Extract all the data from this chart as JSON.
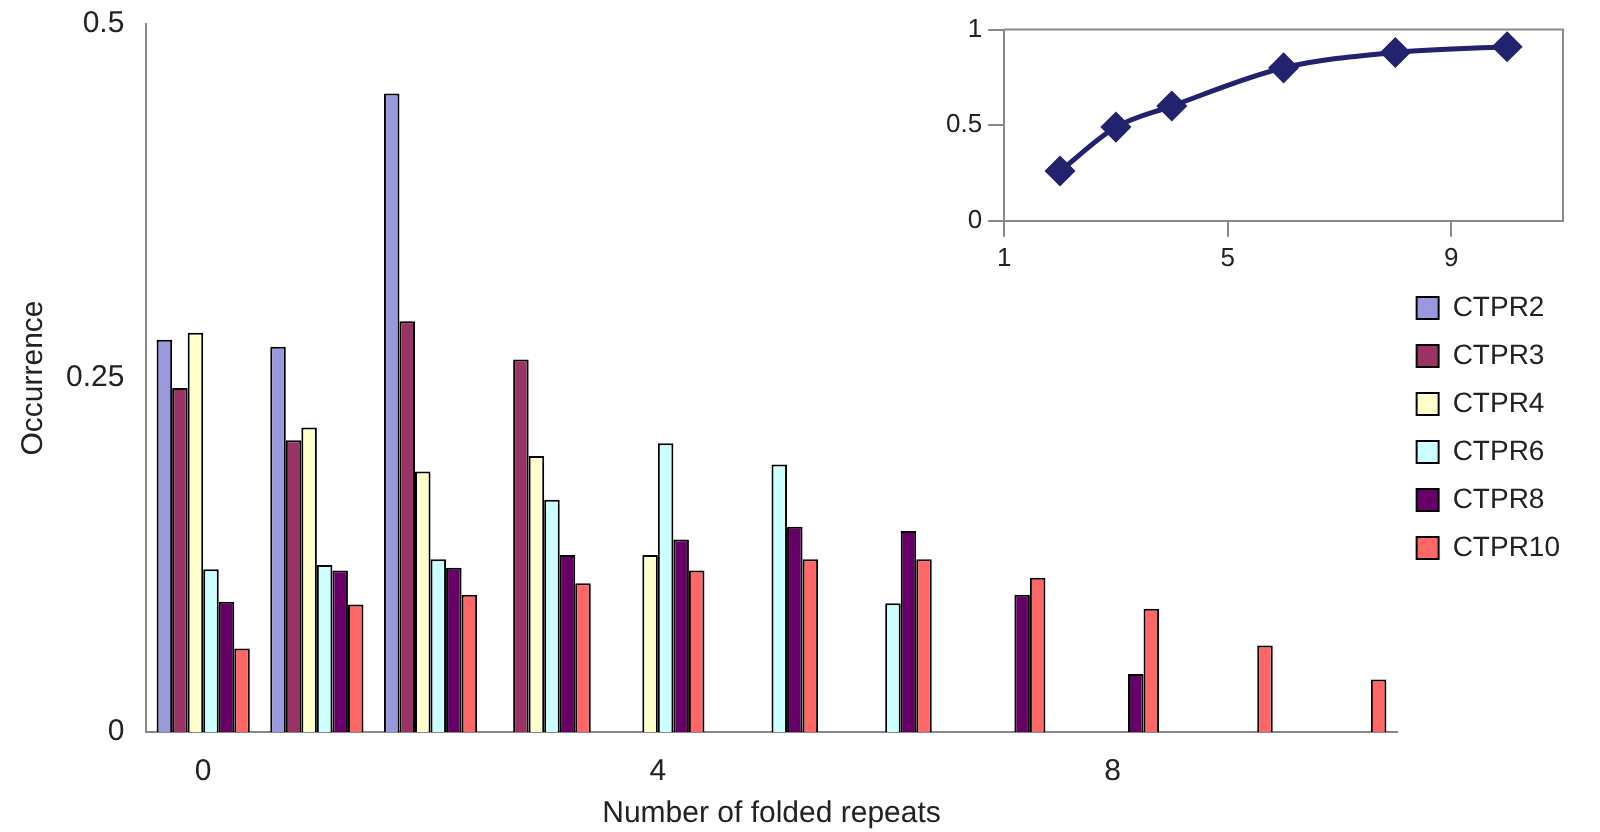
{
  "chart_data": [
    {
      "type": "bar",
      "xlabel": "Number of folded repeats",
      "ylabel": "Occurrence",
      "categories": [
        "0",
        null,
        null,
        null,
        "4",
        null,
        null,
        null,
        "8",
        null,
        null
      ],
      "series": [
        {
          "name": "CTPR2",
          "color": "#9999dd",
          "values": [
            0.277,
            0.272,
            0.451,
            null,
            null,
            null,
            null,
            null,
            null,
            null,
            null
          ]
        },
        {
          "name": "CTPR3",
          "color": "#993366",
          "values": [
            0.243,
            0.206,
            0.29,
            0.263,
            null,
            null,
            null,
            null,
            null,
            null,
            null
          ]
        },
        {
          "name": "CTPR4",
          "color": "#ffffcc",
          "values": [
            0.282,
            0.215,
            0.184,
            0.195,
            0.125,
            null,
            null,
            null,
            null,
            null,
            null
          ]
        },
        {
          "name": "CTPR6",
          "color": "#ccffff",
          "values": [
            0.115,
            0.118,
            0.122,
            0.164,
            0.204,
            0.189,
            0.091,
            null,
            null,
            null,
            null
          ]
        },
        {
          "name": "CTPR8",
          "color": "#660066",
          "values": [
            0.092,
            0.114,
            0.116,
            0.125,
            0.136,
            0.145,
            0.142,
            0.097,
            0.041,
            null,
            null
          ]
        },
        {
          "name": "CTPR10",
          "color": "#ff6666",
          "values": [
            0.059,
            0.09,
            0.097,
            0.105,
            0.114,
            0.122,
            0.122,
            0.109,
            0.087,
            0.061,
            0.037
          ]
        }
      ],
      "ylim": [
        0,
        0.5
      ],
      "yticks": [
        0,
        0.25,
        0.5
      ],
      "grid": false,
      "legend": "right"
    },
    {
      "type": "line",
      "x": [
        2,
        3,
        4,
        6,
        8,
        10
      ],
      "values": [
        0.26,
        0.49,
        0.6,
        0.8,
        0.88,
        0.91
      ],
      "color": "#22226e",
      "marker": "diamond",
      "xlim": [
        1,
        11
      ],
      "xticks": [
        1,
        5,
        9
      ],
      "ylim": [
        0,
        1
      ],
      "yticks": [
        0,
        0.5,
        1
      ],
      "grid": false
    }
  ]
}
